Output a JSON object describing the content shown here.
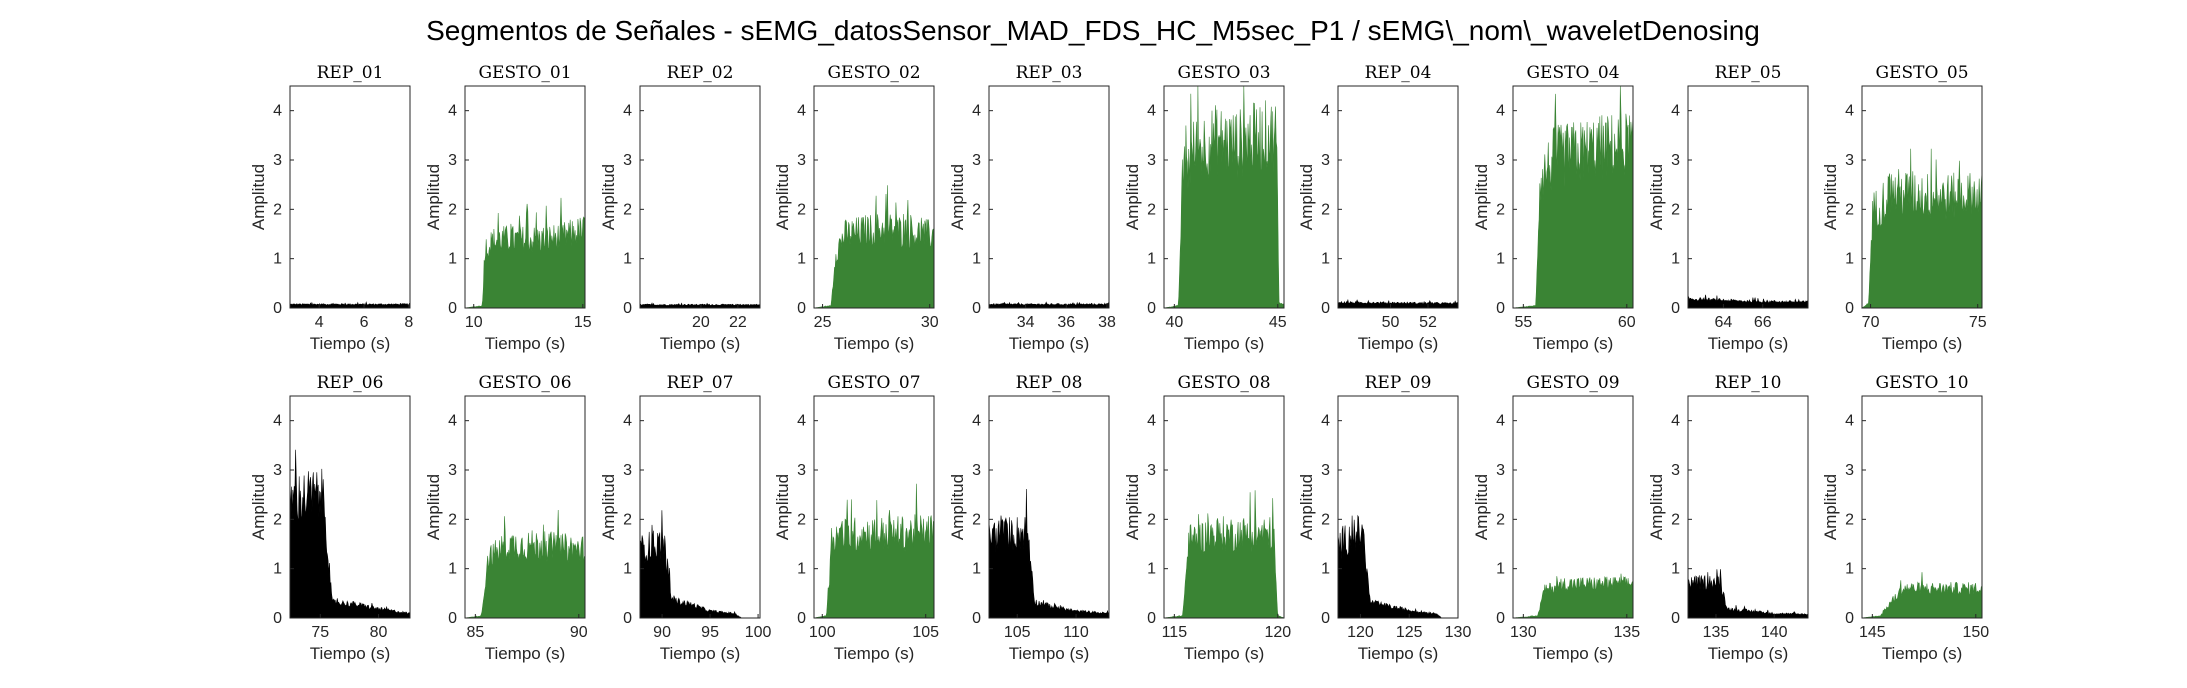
{
  "chart_data": {
    "type": "area",
    "title": "Segmentos de Señales - sEMG_datosSensor_MAD_FDS_HC_M5sec_P1 / sEMG\\_nom\\_waveletDenosing",
    "xlabel": "Tiempo (s)",
    "ylabel": "Amplitud",
    "ylim": [
      0,
      4.5
    ],
    "yticks": [
      0,
      1,
      2,
      3,
      4
    ],
    "colors": {
      "rep": "#000000",
      "gesto": "#3a8434"
    },
    "panels": [
      {
        "title": "REP_01",
        "kind": "rep",
        "xlim": [
          2.7,
          8.05
        ],
        "xticks": [
          4,
          6,
          8
        ],
        "envelope": [
          [
            2.7,
            0.08
          ],
          [
            8.05,
            0.08
          ]
        ]
      },
      {
        "title": "GESTO_01",
        "kind": "gesto",
        "xlim": [
          9.6,
          15.1
        ],
        "xticks": [
          10,
          15
        ],
        "envelope": [
          [
            9.6,
            0.0
          ],
          [
            10.4,
            0.05
          ],
          [
            10.5,
            1.3
          ],
          [
            11.0,
            1.5
          ],
          [
            12.0,
            1.5
          ],
          [
            13.0,
            1.5
          ],
          [
            14.0,
            1.55
          ],
          [
            15.1,
            1.7
          ]
        ]
      },
      {
        "title": "REP_02",
        "kind": "rep",
        "xlim": [
          16.7,
          23.2
        ],
        "xticks": [
          20,
          22
        ],
        "envelope": [
          [
            16.7,
            0.07
          ],
          [
            23.2,
            0.07
          ]
        ]
      },
      {
        "title": "GESTO_02",
        "kind": "gesto",
        "xlim": [
          24.6,
          30.2
        ],
        "xticks": [
          25,
          30
        ],
        "envelope": [
          [
            24.6,
            0.0
          ],
          [
            25.4,
            0.05
          ],
          [
            25.6,
            1.2
          ],
          [
            26.0,
            1.6
          ],
          [
            27.0,
            1.7
          ],
          [
            28.0,
            1.75
          ],
          [
            29.0,
            1.65
          ],
          [
            30.2,
            1.6
          ]
        ]
      },
      {
        "title": "REP_03",
        "kind": "rep",
        "xlim": [
          32.2,
          38.1
        ],
        "xticks": [
          34,
          36,
          38
        ],
        "envelope": [
          [
            32.2,
            0.08
          ],
          [
            38.1,
            0.08
          ]
        ]
      },
      {
        "title": "GESTO_03",
        "kind": "gesto",
        "xlim": [
          39.5,
          45.3
        ],
        "xticks": [
          40,
          45
        ],
        "envelope": [
          [
            39.5,
            0.0
          ],
          [
            40.2,
            0.05
          ],
          [
            40.4,
            2.9
          ],
          [
            41.0,
            3.5
          ],
          [
            42.0,
            3.7
          ],
          [
            43.0,
            3.6
          ],
          [
            44.0,
            3.75
          ],
          [
            44.95,
            3.8
          ],
          [
            45.05,
            0.1
          ],
          [
            45.3,
            0.1
          ]
        ]
      },
      {
        "title": "REP_04",
        "kind": "rep",
        "xlim": [
          47.2,
          53.6
        ],
        "xticks": [
          50,
          52
        ],
        "envelope": [
          [
            47.2,
            0.12
          ],
          [
            53.6,
            0.1
          ]
        ]
      },
      {
        "title": "GESTO_04",
        "kind": "gesto",
        "xlim": [
          54.5,
          60.3
        ],
        "xticks": [
          55,
          60
        ],
        "envelope": [
          [
            54.5,
            0.0
          ],
          [
            55.6,
            0.05
          ],
          [
            55.8,
            2.8
          ],
          [
            56.5,
            3.3
          ],
          [
            57.5,
            3.4
          ],
          [
            58.5,
            3.5
          ],
          [
            60.3,
            3.6
          ]
        ]
      },
      {
        "title": "REP_05",
        "kind": "rep",
        "xlim": [
          62.2,
          68.3
        ],
        "xticks": [
          64,
          66
        ],
        "envelope": [
          [
            62.2,
            0.2
          ],
          [
            65.0,
            0.15
          ],
          [
            68.3,
            0.13
          ]
        ]
      },
      {
        "title": "GESTO_05",
        "kind": "gesto",
        "xlim": [
          69.6,
          75.2
        ],
        "xticks": [
          70,
          75
        ],
        "envelope": [
          [
            69.6,
            0.0
          ],
          [
            69.9,
            0.1
          ],
          [
            70.1,
            2.1
          ],
          [
            71.0,
            2.55
          ],
          [
            72.0,
            2.5
          ],
          [
            73.0,
            2.45
          ],
          [
            74.0,
            2.45
          ],
          [
            75.2,
            2.5
          ]
        ]
      },
      {
        "title": "REP_06",
        "kind": "rep",
        "xlim": [
          72.4,
          82.7
        ],
        "xticks": [
          75,
          80
        ],
        "envelope": [
          [
            72.4,
            2.6
          ],
          [
            74.0,
            2.7
          ],
          [
            75.3,
            2.7
          ],
          [
            76.0,
            0.35
          ],
          [
            78.0,
            0.3
          ],
          [
            80.0,
            0.2
          ],
          [
            82.7,
            0.1
          ]
        ]
      },
      {
        "title": "GESTO_06",
        "kind": "gesto",
        "xlim": [
          84.5,
          90.3
        ],
        "xticks": [
          85,
          90
        ],
        "envelope": [
          [
            84.5,
            0.0
          ],
          [
            85.3,
            0.05
          ],
          [
            85.6,
            1.3
          ],
          [
            86.5,
            1.6
          ],
          [
            88.0,
            1.6
          ],
          [
            89.0,
            1.55
          ],
          [
            90.3,
            1.5
          ]
        ]
      },
      {
        "title": "REP_07",
        "kind": "rep",
        "xlim": [
          87.7,
          100.2
        ],
        "xticks": [
          90,
          95,
          100
        ],
        "envelope": [
          [
            87.7,
            1.5
          ],
          [
            89.0,
            1.6
          ],
          [
            90.2,
            1.65
          ],
          [
            91.0,
            0.4
          ],
          [
            93.0,
            0.3
          ],
          [
            95.0,
            0.15
          ],
          [
            97.5,
            0.1
          ],
          [
            98.3,
            0.0
          ],
          [
            100.2,
            0.0
          ]
        ]
      },
      {
        "title": "GESTO_07",
        "kind": "gesto",
        "xlim": [
          99.6,
          105.4
        ],
        "xticks": [
          100,
          105
        ],
        "envelope": [
          [
            99.6,
            0.0
          ],
          [
            100.2,
            0.05
          ],
          [
            100.5,
            1.8
          ],
          [
            102.0,
            1.85
          ],
          [
            103.5,
            1.85
          ],
          [
            105.4,
            1.9
          ]
        ]
      },
      {
        "title": "REP_08",
        "kind": "rep",
        "xlim": [
          102.6,
          112.8
        ],
        "xticks": [
          105,
          110
        ],
        "envelope": [
          [
            102.6,
            1.8
          ],
          [
            104.5,
            1.85
          ],
          [
            105.9,
            1.9
          ],
          [
            106.5,
            0.35
          ],
          [
            108.0,
            0.25
          ],
          [
            110.0,
            0.15
          ],
          [
            112.8,
            0.1
          ]
        ]
      },
      {
        "title": "GESTO_08",
        "kind": "gesto",
        "xlim": [
          114.5,
          120.3
        ],
        "xticks": [
          115,
          120
        ],
        "envelope": [
          [
            114.5,
            0.0
          ],
          [
            115.4,
            0.05
          ],
          [
            115.7,
            1.7
          ],
          [
            117.0,
            1.85
          ],
          [
            118.5,
            1.85
          ],
          [
            119.8,
            1.85
          ],
          [
            120.0,
            0.05
          ],
          [
            120.3,
            0.0
          ]
        ]
      },
      {
        "title": "REP_09",
        "kind": "rep",
        "xlim": [
          117.7,
          130.0
        ],
        "xticks": [
          120,
          125,
          130
        ],
        "envelope": [
          [
            117.7,
            1.6
          ],
          [
            119.0,
            1.8
          ],
          [
            120.2,
            1.9
          ],
          [
            121.0,
            0.35
          ],
          [
            123.0,
            0.25
          ],
          [
            125.5,
            0.15
          ],
          [
            127.8,
            0.1
          ],
          [
            128.3,
            0.0
          ],
          [
            130.0,
            0.0
          ]
        ]
      },
      {
        "title": "GESTO_09",
        "kind": "gesto",
        "xlim": [
          129.5,
          135.3
        ],
        "xticks": [
          130,
          135
        ],
        "envelope": [
          [
            129.5,
            0.0
          ],
          [
            130.7,
            0.05
          ],
          [
            131.0,
            0.6
          ],
          [
            132.0,
            0.75
          ],
          [
            133.5,
            0.75
          ],
          [
            135.3,
            0.75
          ]
        ]
      },
      {
        "title": "REP_10",
        "kind": "rep",
        "xlim": [
          132.6,
          142.9
        ],
        "xticks": [
          135,
          140
        ],
        "envelope": [
          [
            132.6,
            0.75
          ],
          [
            134.5,
            0.8
          ],
          [
            135.4,
            0.75
          ],
          [
            136.0,
            0.2
          ],
          [
            138.0,
            0.15
          ],
          [
            140.0,
            0.1
          ],
          [
            142.9,
            0.08
          ]
        ]
      },
      {
        "title": "GESTO_10",
        "kind": "gesto",
        "xlim": [
          144.5,
          150.3
        ],
        "xticks": [
          145,
          150
        ],
        "envelope": [
          [
            144.5,
            0.0
          ],
          [
            145.4,
            0.05
          ],
          [
            145.9,
            0.35
          ],
          [
            146.5,
            0.65
          ],
          [
            148.0,
            0.65
          ],
          [
            150.3,
            0.65
          ]
        ]
      }
    ]
  }
}
